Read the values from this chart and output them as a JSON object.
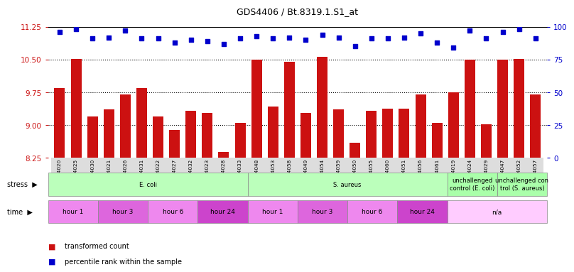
{
  "title": "GDS4406 / Bt.8319.1.S1_at",
  "samples": [
    "GSM624020",
    "GSM624025",
    "GSM624030",
    "GSM624021",
    "GSM624026",
    "GSM624031",
    "GSM624022",
    "GSM624027",
    "GSM624032",
    "GSM624023",
    "GSM624028",
    "GSM624033",
    "GSM624048",
    "GSM624053",
    "GSM624058",
    "GSM624049",
    "GSM624054",
    "GSM624059",
    "GSM624050",
    "GSM624055",
    "GSM624060",
    "GSM624051",
    "GSM624056",
    "GSM624061",
    "GSM624019",
    "GSM624024",
    "GSM624029",
    "GSM624047",
    "GSM624052",
    "GSM624057"
  ],
  "bar_values": [
    9.85,
    10.52,
    9.2,
    9.35,
    9.7,
    9.85,
    9.2,
    8.88,
    9.32,
    9.28,
    8.38,
    9.05,
    10.5,
    9.42,
    10.45,
    9.28,
    10.57,
    9.35,
    8.6,
    9.32,
    9.38,
    9.38,
    9.7,
    9.05,
    9.75,
    10.5,
    9.02,
    10.5,
    10.52,
    9.7
  ],
  "dot_values": [
    96,
    98,
    91,
    92,
    97,
    91,
    91,
    88,
    90,
    89,
    87,
    91,
    93,
    91,
    92,
    90,
    94,
    92,
    85,
    91,
    91,
    92,
    95,
    88,
    84,
    97,
    91,
    96,
    98,
    91
  ],
  "ylim_left": [
    8.25,
    11.25
  ],
  "ylim_right": [
    0,
    100
  ],
  "yticks_left": [
    8.25,
    9.0,
    9.75,
    10.5,
    11.25
  ],
  "yticks_right": [
    0,
    25,
    50,
    75,
    100
  ],
  "bar_color": "#cc1111",
  "dot_color": "#0000cc",
  "grid_lines": [
    9.0,
    9.75,
    10.5
  ],
  "stress_groups": [
    {
      "label": "E. coli",
      "start": 0,
      "end": 12,
      "color": "#bbffbb"
    },
    {
      "label": "S. aureus",
      "start": 12,
      "end": 24,
      "color": "#bbffbb"
    },
    {
      "label": "unchallenged\ncontrol (E. coli)",
      "start": 24,
      "end": 27,
      "color": "#aaffaa"
    },
    {
      "label": "unchallenged con\ntrol (S. aureus)",
      "start": 27,
      "end": 30,
      "color": "#aaffaa"
    }
  ],
  "time_groups": [
    {
      "label": "hour 1",
      "start": 0,
      "end": 3,
      "color": "#ee88ee"
    },
    {
      "label": "hour 3",
      "start": 3,
      "end": 6,
      "color": "#dd66dd"
    },
    {
      "label": "hour 6",
      "start": 6,
      "end": 9,
      "color": "#ee88ee"
    },
    {
      "label": "hour 24",
      "start": 9,
      "end": 12,
      "color": "#cc44cc"
    },
    {
      "label": "hour 1",
      "start": 12,
      "end": 15,
      "color": "#ee88ee"
    },
    {
      "label": "hour 3",
      "start": 15,
      "end": 18,
      "color": "#dd66dd"
    },
    {
      "label": "hour 6",
      "start": 18,
      "end": 21,
      "color": "#ee88ee"
    },
    {
      "label": "hour 24",
      "start": 21,
      "end": 24,
      "color": "#cc44cc"
    },
    {
      "label": "n/a",
      "start": 24,
      "end": 30,
      "color": "#ffccff"
    }
  ],
  "legend_items": [
    {
      "color": "#cc1111",
      "label": "transformed count"
    },
    {
      "color": "#0000cc",
      "label": "percentile rank within the sample"
    }
  ]
}
